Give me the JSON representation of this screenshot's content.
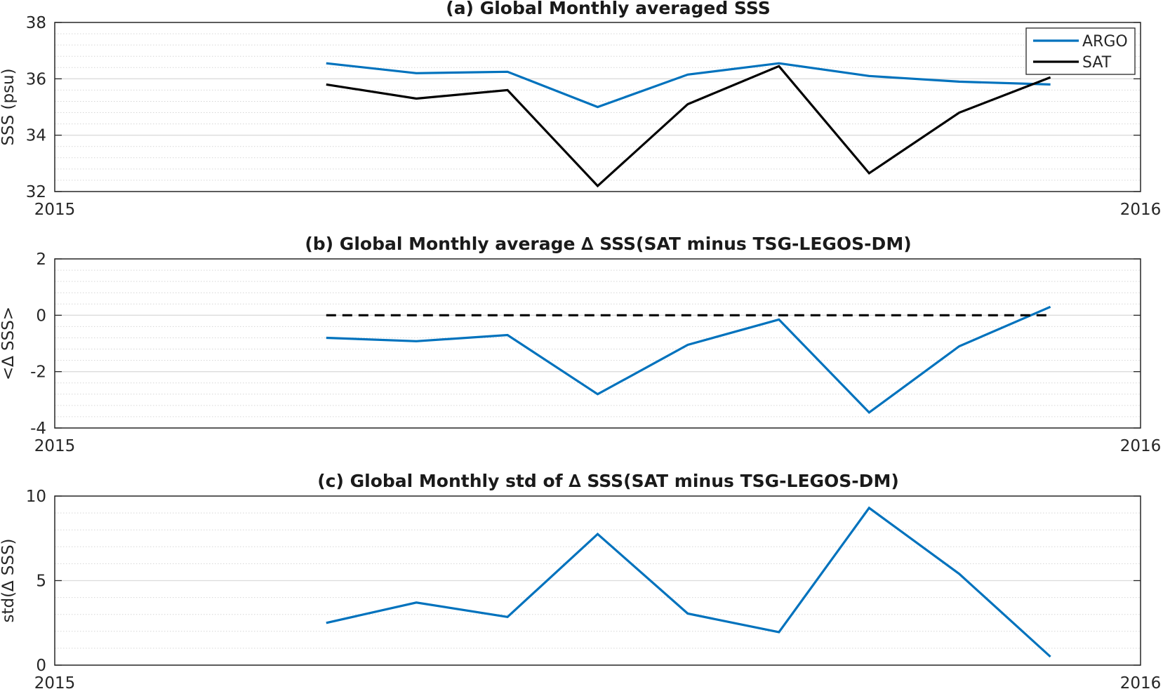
{
  "chart_data": [
    {
      "type": "line",
      "title": "(a) Global Monthly averaged SSS",
      "xlabel": "",
      "ylabel": "SSS (psu)",
      "xlim": [
        2015,
        2016
      ],
      "ylim": [
        32,
        38
      ],
      "xticks": [
        "2015",
        "2016"
      ],
      "yticks": [
        "32",
        "34",
        "36",
        "38"
      ],
      "grid": true,
      "minor_grid": true,
      "legend": "top-right",
      "x": [
        2015.25,
        2015.333,
        2015.417,
        2015.5,
        2015.583,
        2015.667,
        2015.75,
        2015.833,
        2015.917
      ],
      "series": [
        {
          "name": "ARGO",
          "color": "#0072BD",
          "dashed": false,
          "values": [
            36.55,
            36.2,
            36.25,
            35.0,
            36.15,
            36.55,
            36.1,
            35.9,
            35.8
          ]
        },
        {
          "name": "SAT",
          "color": "#000000",
          "dashed": false,
          "values": [
            35.8,
            35.3,
            35.6,
            32.2,
            35.1,
            36.45,
            32.65,
            34.8,
            36.05
          ]
        }
      ]
    },
    {
      "type": "line",
      "title": "(b) Global Monthly average ∆ SSS(SAT minus TSG-LEGOS-DM)",
      "xlabel": "",
      "ylabel": "<∆ SSS>",
      "xlim": [
        2015,
        2016
      ],
      "ylim": [
        -4,
        2
      ],
      "xticks": [
        "2015",
        "2016"
      ],
      "yticks": [
        "-4",
        "-2",
        "0",
        "2"
      ],
      "grid": true,
      "minor_grid": true,
      "legend": "none",
      "x": [
        2015.25,
        2015.333,
        2015.417,
        2015.5,
        2015.583,
        2015.667,
        2015.75,
        2015.833,
        2015.917
      ],
      "series": [
        {
          "color": "#0072BD",
          "dashed": false,
          "values": [
            -0.8,
            -0.92,
            -0.7,
            -2.8,
            -1.05,
            -0.15,
            -3.45,
            -1.1,
            0.3
          ]
        },
        {
          "color": "#000000",
          "dashed": true,
          "values": [
            0,
            0,
            0,
            0,
            0,
            0,
            0,
            0,
            0
          ]
        }
      ]
    },
    {
      "type": "line",
      "title": "(c) Global Monthly std of ∆ SSS(SAT minus TSG-LEGOS-DM)",
      "xlabel": "",
      "ylabel": "std(∆ SSS)",
      "xlim": [
        2015,
        2016
      ],
      "ylim": [
        0,
        10
      ],
      "xticks": [
        "2015",
        "2016"
      ],
      "yticks": [
        "0",
        "5",
        "10"
      ],
      "grid": true,
      "minor_grid": true,
      "legend": "none",
      "x": [
        2015.25,
        2015.333,
        2015.417,
        2015.5,
        2015.583,
        2015.667,
        2015.75,
        2015.833,
        2015.917
      ],
      "series": [
        {
          "color": "#0072BD",
          "dashed": false,
          "values": [
            2.5,
            3.7,
            2.85,
            7.75,
            3.05,
            1.95,
            9.3,
            5.4,
            0.5
          ]
        }
      ]
    }
  ]
}
